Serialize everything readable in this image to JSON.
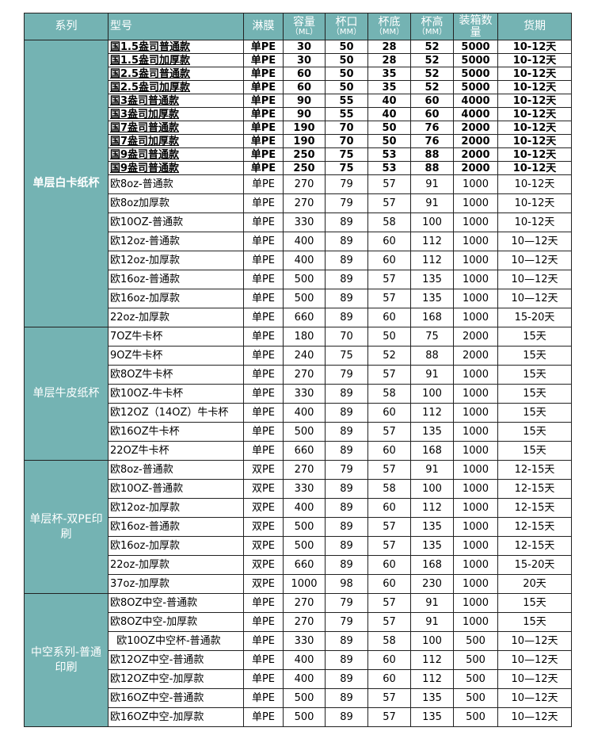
{
  "headers": [
    "系列",
    "型号",
    "淋膜",
    "容量",
    "（ML）",
    "杯口",
    "（MM）",
    "杯底",
    "（MM）",
    "杯高",
    "（MM）",
    "装箱数量",
    "货期"
  ],
  "colors": {
    "header_bg": "#74b3b3"
  },
  "groups": [
    {
      "name": "单层白卡纸杯",
      "compact": true,
      "rows": [
        [
          "国1.5盎司普通款",
          "单PE",
          "30",
          "50",
          "28",
          "52",
          "5000",
          "10-12天"
        ],
        [
          "国1.5盎司加厚款",
          "单PE",
          "30",
          "50",
          "28",
          "52",
          "5000",
          "10-12天"
        ],
        [
          "国2.5盎司普通款",
          "单PE",
          "60",
          "50",
          "35",
          "52",
          "5000",
          "10-12天"
        ],
        [
          "国2.5盎司加厚款",
          "单PE",
          "60",
          "50",
          "35",
          "52",
          "5000",
          "10-12天"
        ],
        [
          "国3盎司普通款",
          "单PE",
          "90",
          "55",
          "40",
          "60",
          "4000",
          "10-12天"
        ],
        [
          "国3盎司加厚款",
          "单PE",
          "90",
          "55",
          "40",
          "60",
          "4000",
          "10-12天"
        ],
        [
          "国7盎司普通款",
          "单PE",
          "190",
          "70",
          "50",
          "76",
          "2000",
          "10-12天"
        ],
        [
          "国7盎司加厚款",
          "单PE",
          "190",
          "70",
          "50",
          "76",
          "2000",
          "10-12天"
        ],
        [
          "国9盎司普通款",
          "单PE",
          "250",
          "75",
          "53",
          "88",
          "2000",
          "10-12天"
        ],
        [
          "国9盎司普通款",
          "单PE",
          "250",
          "75",
          "53",
          "88",
          "2000",
          "10-12天"
        ]
      ]
    },
    {
      "name": "",
      "compact": false,
      "rows": [
        [
          "欧8oz-普通款",
          "单PE",
          "270",
          "79",
          "57",
          "91",
          "1000",
          "10-12天"
        ],
        [
          "欧8oz加厚款",
          "单PE",
          "270",
          "79",
          "57",
          "91",
          "1000",
          "10-12天"
        ],
        [
          "欧10OZ-普通款",
          "单PE",
          "330",
          "89",
          "58",
          "100",
          "1000",
          "10-12天"
        ],
        [
          "欧12oz-普通款",
          "单PE",
          "400",
          "89",
          "60",
          "112",
          "1000",
          "10—12天"
        ],
        [
          "欧12oz-加厚款",
          "单PE",
          "400",
          "89",
          "60",
          "112",
          "1000",
          "10—12天"
        ],
        [
          "欧16oz-普通款",
          "单PE",
          "500",
          "89",
          "57",
          "135",
          "1000",
          "10—12天"
        ],
        [
          "欧16oz-加厚款",
          "单PE",
          "500",
          "89",
          "57",
          "135",
          "1000",
          "10—12天"
        ],
        [
          "22oz-加厚款",
          "单PE",
          "660",
          "89",
          "60",
          "168",
          "1000",
          "15-20天"
        ]
      ]
    },
    {
      "name": "单层牛皮纸杯",
      "compact": false,
      "rows": [
        [
          "7OZ牛卡杯",
          "单PE",
          "180",
          "70",
          "50",
          "75",
          "2000",
          "15天"
        ],
        [
          "9OZ牛卡杯",
          "单PE",
          "240",
          "75",
          "52",
          "88",
          "2000",
          "15天"
        ],
        [
          "欧8OZ牛卡杯",
          "单PE",
          "270",
          "79",
          "57",
          "91",
          "1000",
          "15天"
        ],
        [
          "欧10OZ-牛卡杯",
          "单PE",
          "330",
          "89",
          "58",
          "100",
          "1000",
          "15天"
        ],
        [
          "欧12OZ（14OZ）牛卡杯",
          "单PE",
          "400",
          "89",
          "60",
          "112",
          "1000",
          "15天"
        ],
        [
          "欧16OZ牛卡杯",
          "单PE",
          "500",
          "89",
          "57",
          "135",
          "1000",
          "15天"
        ],
        [
          "22OZ牛卡杯",
          "单PE",
          "660",
          "89",
          "60",
          "168",
          "1000",
          "15天"
        ]
      ]
    },
    {
      "name": "单层杯-双PE印刷",
      "compact": false,
      "rows": [
        [
          "欧8oz-普通款",
          "双PE",
          "270",
          "79",
          "57",
          "91",
          "1000",
          "12-15天"
        ],
        [
          "欧10OZ-普通款",
          "双PE",
          "330",
          "89",
          "58",
          "100",
          "1000",
          "12-15天"
        ],
        [
          "欧12oz-加厚款",
          "双PE",
          "400",
          "89",
          "60",
          "112",
          "1000",
          "12-15天"
        ],
        [
          "欧16oz-普通款",
          "双PE",
          "500",
          "89",
          "57",
          "135",
          "1000",
          "12-15天"
        ],
        [
          "欧16oz-加厚款",
          "双PE",
          "500",
          "89",
          "57",
          "135",
          "1000",
          "12-15天"
        ],
        [
          "22oz-加厚款",
          "双PE",
          "660",
          "89",
          "60",
          "168",
          "1000",
          "15-20天"
        ],
        [
          "37oz-加厚款",
          "双PE",
          "1000",
          "98",
          "60",
          "230",
          "1000",
          "20天"
        ]
      ]
    },
    {
      "name": "中空系列-普通印刷",
      "compact": false,
      "rows": [
        [
          "欧8OZ中空-普通款",
          "单PE",
          "270",
          "79",
          "57",
          "91",
          "1000",
          "15天"
        ],
        [
          "欧8OZ中空-加厚款",
          "单PE",
          "270",
          "79",
          "57",
          "91",
          "1000",
          "15天"
        ],
        [
          "  欧10OZ中空杯-普通款",
          "单PE",
          "330",
          "89",
          "58",
          "100",
          "500",
          "10—12天"
        ],
        [
          "欧12OZ中空-普通款",
          "单PE",
          "400",
          "89",
          "60",
          "112",
          "500",
          "10—12天"
        ],
        [
          "欧12OZ中空-加厚款",
          "单PE",
          "400",
          "89",
          "60",
          "112",
          "500",
          "10—12天"
        ],
        [
          "欧16OZ中空-普通款",
          "单PE",
          "500",
          "89",
          "57",
          "135",
          "500",
          "10—12天"
        ],
        [
          "欧16OZ中空-加厚款",
          "单PE",
          "500",
          "89",
          "57",
          "135",
          "500",
          "10—12天"
        ]
      ]
    }
  ]
}
